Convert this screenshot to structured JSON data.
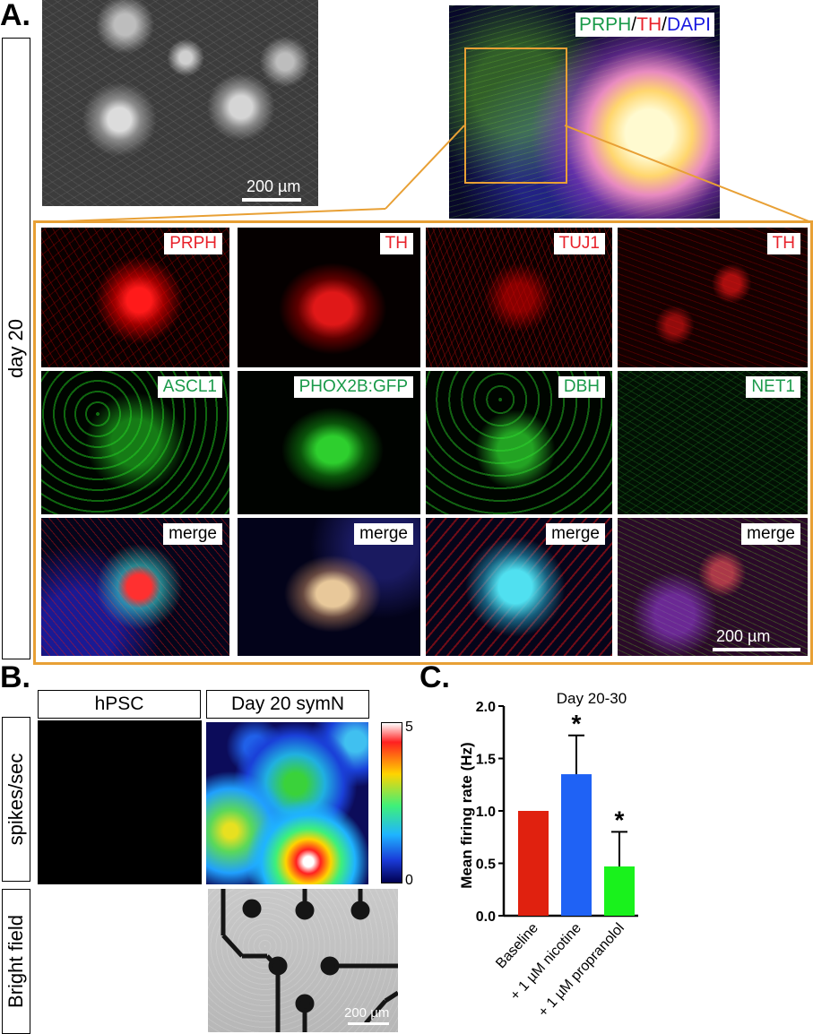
{
  "panel_a": {
    "letter": "A.",
    "side_label": "day 20",
    "overview_scale": "200 µm",
    "overview_stain": {
      "prph": "PRPH",
      "sep1": "/",
      "th": "TH",
      "sep2": "/",
      "dapi": "DAPI"
    },
    "grid_scale": "200 µm",
    "rows": [
      {
        "cells": [
          {
            "label": "PRPH",
            "color": "red"
          },
          {
            "label": "TH",
            "color": "red"
          },
          {
            "label": "TUJ1",
            "color": "red"
          },
          {
            "label": "TH",
            "color": "red"
          }
        ]
      },
      {
        "cells": [
          {
            "label": "ASCL1",
            "color": "green"
          },
          {
            "label": "PHOX2B:GFP",
            "color": "green"
          },
          {
            "label": "DBH",
            "color": "green"
          },
          {
            "label": "NET1",
            "color": "green"
          }
        ]
      },
      {
        "cells": [
          {
            "label": "merge",
            "color": "black"
          },
          {
            "label": "merge",
            "color": "black"
          },
          {
            "label": "merge",
            "color": "black"
          },
          {
            "label": "merge",
            "color": "black"
          }
        ]
      }
    ]
  },
  "panel_b": {
    "letter": "B.",
    "col1": "hPSC",
    "col2": "Day 20 symN",
    "row1": "spikes/sec",
    "row2": "Bright field",
    "colorbar_max": "5",
    "colorbar_min": "0",
    "scale": "200 µm"
  },
  "panel_c": {
    "letter": "C."
  },
  "chart_data": {
    "type": "bar",
    "title": "Day 20-30",
    "ylabel": "Mean firing rate (Hz)",
    "xlabel": "",
    "ylim": [
      0,
      2.0
    ],
    "yticks": [
      "0.0",
      "0.5",
      "1.0",
      "1.5",
      "2.0"
    ],
    "categories": [
      "Baseline",
      "+ 1 µM nicotine",
      "+ 1 µM propranolol"
    ],
    "values": [
      1.0,
      1.35,
      0.47
    ],
    "errors": [
      0,
      0.37,
      0.33
    ],
    "colors": [
      "#e0210f",
      "#1f62f5",
      "#19f21c"
    ],
    "significance": [
      "",
      "*",
      "*"
    ]
  }
}
